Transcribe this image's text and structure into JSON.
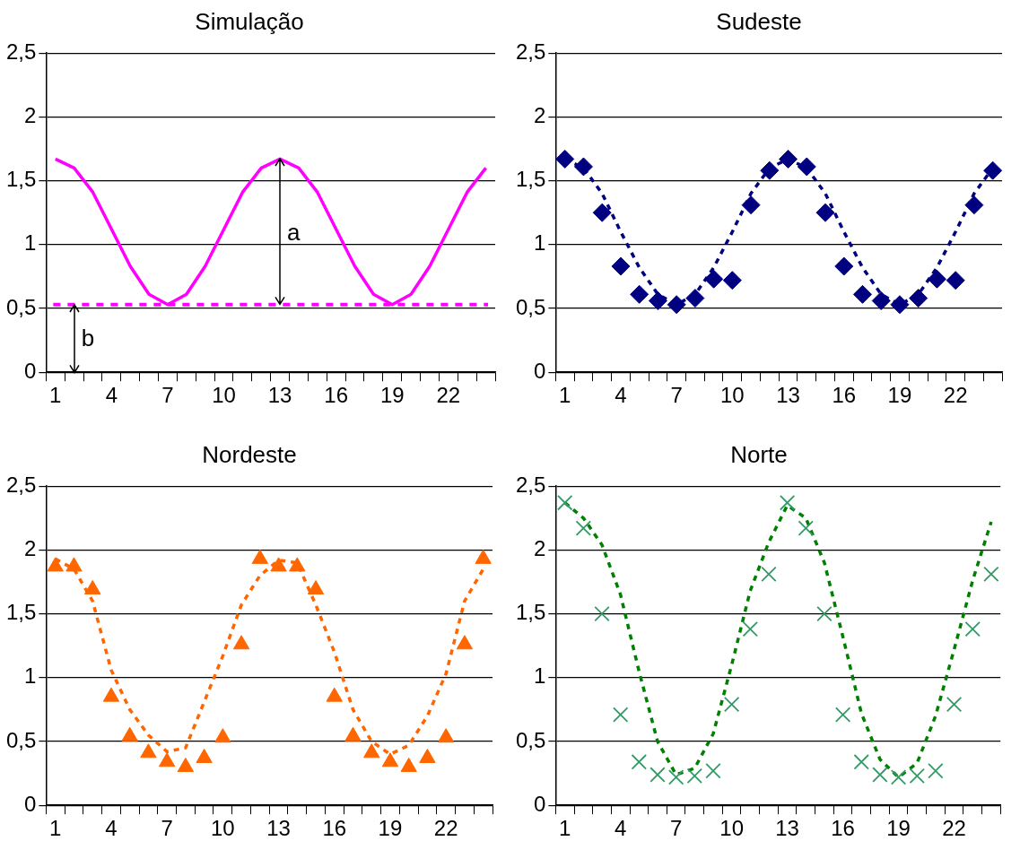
{
  "chart_data": [
    {
      "type": "line",
      "title": "Simulação",
      "categories": [
        "1",
        null,
        null,
        "4",
        null,
        null,
        "7",
        null,
        null,
        "10",
        null,
        null,
        "13",
        null,
        null,
        "16",
        null,
        null,
        "19",
        null,
        null,
        "22",
        null,
        null
      ],
      "series": [
        {
          "color": "#ff00ff",
          "marker": "none",
          "line_style": "solid",
          "values": [
            1.67,
            1.6,
            1.41,
            1.12,
            0.83,
            0.61,
            0.53,
            0.61,
            0.83,
            1.12,
            1.41,
            1.6,
            1.67,
            1.6,
            1.41,
            1.12,
            0.83,
            0.61,
            0.53,
            0.61,
            0.83,
            1.12,
            1.41,
            1.6
          ]
        }
      ],
      "ref_lines": [
        {
          "axis": "y",
          "value": 0.53,
          "color": "#ff00ff",
          "line_style": "dashed"
        }
      ],
      "annotations": [
        "a",
        "b"
      ],
      "ylim": [
        0,
        2.5
      ],
      "yticks": [
        0,
        {
          "value": 0.5,
          "label": "0,5"
        },
        1,
        {
          "value": 1.5,
          "label": "1,5"
        },
        2,
        {
          "value": 2.5,
          "label": "2,5"
        }
      ],
      "grid": "y",
      "legend": false
    },
    {
      "type": "scatter",
      "title": "Sudeste",
      "categories": [
        "1",
        null,
        null,
        "4",
        null,
        null,
        "7",
        null,
        null,
        "10",
        null,
        null,
        "13",
        null,
        null,
        "16",
        null,
        null,
        "19",
        null,
        null,
        "22",
        null,
        null
      ],
      "series": [
        {
          "color": "#000080",
          "marker": "diamond",
          "values": [
            1.67,
            1.61,
            1.25,
            0.83,
            0.61,
            0.56,
            0.53,
            0.58,
            0.73,
            0.72,
            1.31,
            1.58,
            1.67,
            1.61,
            1.25,
            0.83,
            0.61,
            0.56,
            0.53,
            0.58,
            0.73,
            0.72,
            1.31,
            1.58
          ]
        },
        {
          "type": "line",
          "color": "#000080",
          "marker": "none",
          "line_style": "dashed",
          "values": [
            1.67,
            1.6,
            1.4,
            1.1,
            0.82,
            0.61,
            0.53,
            0.61,
            0.82,
            1.1,
            1.4,
            1.6,
            1.67,
            1.6,
            1.4,
            1.1,
            0.82,
            0.61,
            0.53,
            0.61,
            0.82,
            1.1,
            1.4,
            1.6
          ]
        }
      ],
      "ylim": [
        0,
        2.5
      ],
      "yticks": [
        0,
        {
          "value": 0.5,
          "label": "0,5"
        },
        1,
        {
          "value": 1.5,
          "label": "1,5"
        },
        2,
        {
          "value": 2.5,
          "label": "2,5"
        }
      ],
      "grid": "y",
      "legend": false
    },
    {
      "type": "scatter",
      "title": "Nordeste",
      "categories": [
        "1",
        null,
        null,
        "4",
        null,
        null,
        "7",
        null,
        null,
        "10",
        null,
        null,
        "13",
        null,
        null,
        "16",
        null,
        null,
        "19",
        null,
        null,
        "22",
        null,
        null
      ],
      "series": [
        {
          "color": "#ff6600",
          "marker": "triangle",
          "values": [
            1.87,
            1.87,
            1.69,
            0.85,
            0.54,
            0.41,
            0.34,
            0.3,
            0.37,
            0.53,
            1.26,
            1.93,
            1.87,
            1.87,
            1.69,
            0.85,
            0.54,
            0.41,
            0.34,
            0.3,
            0.37,
            0.53,
            1.26,
            1.93
          ]
        },
        {
          "type": "line",
          "color": "#ff6600",
          "marker": "none",
          "line_style": "dashed",
          "values": [
            1.93,
            1.85,
            1.6,
            1.06,
            0.75,
            0.55,
            0.42,
            0.45,
            0.81,
            1.17,
            1.57,
            1.8,
            1.92,
            1.9,
            1.57,
            1.2,
            0.75,
            0.5,
            0.4,
            0.47,
            0.7,
            1.03,
            1.6,
            1.85
          ]
        }
      ],
      "ylim": [
        0,
        2.5
      ],
      "yticks": [
        0,
        {
          "value": 0.5,
          "label": "0,5"
        },
        1,
        {
          "value": 1.5,
          "label": "1,5"
        },
        2,
        {
          "value": 2.5,
          "label": "2,5"
        }
      ],
      "grid": "y",
      "legend": false
    },
    {
      "type": "scatter",
      "title": "Norte",
      "categories": [
        "1",
        null,
        null,
        "4",
        null,
        null,
        "7",
        null,
        null,
        "10",
        null,
        null,
        "13",
        null,
        null,
        "16",
        null,
        null,
        "19",
        null,
        null,
        "22",
        null,
        null
      ],
      "series": [
        {
          "color": "#339966",
          "marker": "cross",
          "values": [
            2.37,
            2.17,
            1.5,
            0.71,
            0.34,
            0.24,
            0.22,
            0.23,
            0.27,
            0.79,
            1.38,
            1.81,
            2.37,
            2.17,
            1.5,
            0.71,
            0.34,
            0.24,
            0.22,
            0.23,
            0.27,
            0.79,
            1.38,
            1.81
          ]
        },
        {
          "type": "line",
          "color": "#008000",
          "marker": "none",
          "line_style": "dashed",
          "values": [
            2.37,
            2.25,
            2.04,
            1.65,
            1.05,
            0.5,
            0.24,
            0.29,
            0.56,
            1.1,
            1.68,
            2.06,
            2.35,
            2.25,
            1.9,
            1.32,
            0.72,
            0.36,
            0.22,
            0.33,
            0.7,
            1.22,
            1.76,
            2.22
          ]
        }
      ],
      "ylim": [
        0,
        2.5
      ],
      "yticks": [
        0,
        {
          "value": 0.5,
          "label": "0,5"
        },
        1,
        {
          "value": 1.5,
          "label": "1,5"
        },
        2,
        {
          "value": 2.5,
          "label": "2,5"
        }
      ],
      "grid": "y",
      "legend": false
    }
  ]
}
